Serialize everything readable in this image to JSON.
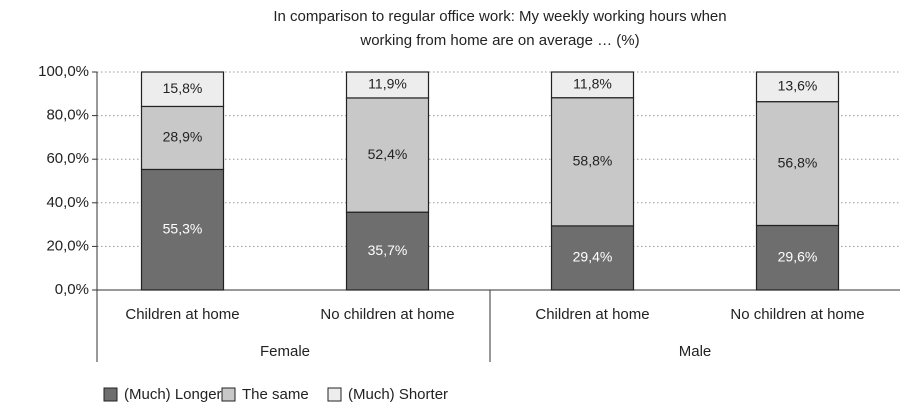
{
  "chart_data": {
    "type": "stacked_bar",
    "title": [
      "In comparison to regular office work: My weekly working hours when",
      "working from home are on average … (%)"
    ],
    "categories": [
      "Children at home",
      "No children at home",
      "Children at home",
      "No children at home"
    ],
    "groups": [
      "Female",
      "Male"
    ],
    "series": [
      {
        "name": "(Much) Longer",
        "color": "#6e6e6e",
        "values": [
          55.3,
          35.7,
          29.4,
          29.6
        ],
        "value_labels": [
          "55,3%",
          "35,7%",
          "29,4%",
          "29,6%"
        ]
      },
      {
        "name": "The same",
        "color": "#c8c8c8",
        "values": [
          28.9,
          52.4,
          58.8,
          56.8
        ],
        "value_labels": [
          "28,9%",
          "52,4%",
          "58,8%",
          "56,8%"
        ]
      },
      {
        "name": "(Much) Shorter",
        "color": "#ededed",
        "values": [
          15.8,
          11.9,
          11.8,
          13.6
        ],
        "value_labels": [
          "15,8%",
          "11,9%",
          "11,8%",
          "13,6%"
        ]
      }
    ],
    "ylim": [
      0,
      100
    ],
    "yticks": [
      {
        "value": 0,
        "label": "0,0%"
      },
      {
        "value": 20,
        "label": "20,0%"
      },
      {
        "value": 40,
        "label": "40,0%"
      },
      {
        "value": 60,
        "label": "60,0%"
      },
      {
        "value": 80,
        "label": "80,0%"
      },
      {
        "value": 100,
        "label": "100,0%"
      }
    ],
    "grid": true,
    "legend": "bottom"
  }
}
